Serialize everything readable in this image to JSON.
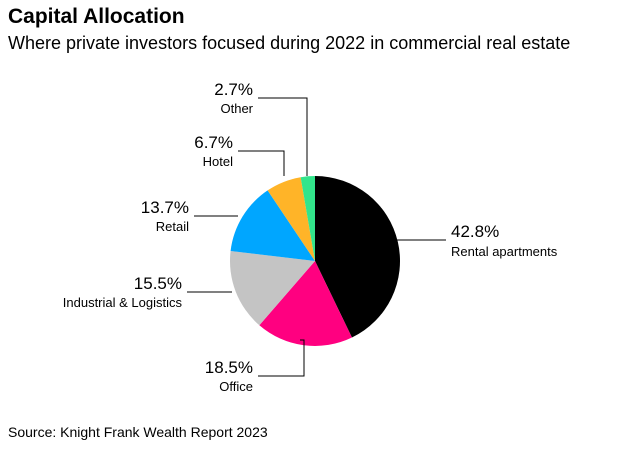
{
  "chart_data": {
    "type": "pie",
    "title": "Capital Allocation",
    "subtitle": "Where private investors focused during 2022 in commercial real estate",
    "source": "Source: Knight Frank Wealth Report 2023",
    "slices": [
      {
        "label": "Rental apartments",
        "pct_label": "42.8%",
        "value": 42.8,
        "color": "#000000"
      },
      {
        "label": "Office",
        "pct_label": "18.5%",
        "value": 18.5,
        "color": "#ff0080"
      },
      {
        "label": "Industrial & Logistics",
        "pct_label": "15.5%",
        "value": 15.5,
        "color": "#c4c4c4"
      },
      {
        "label": "Retail",
        "pct_label": "13.7%",
        "value": 13.7,
        "color": "#00a6ff"
      },
      {
        "label": "Hotel",
        "pct_label": "6.7%",
        "value": 6.7,
        "color": "#ffb428"
      },
      {
        "label": "Other",
        "pct_label": "2.7%",
        "value": 2.7,
        "color": "#33e58c"
      }
    ]
  }
}
